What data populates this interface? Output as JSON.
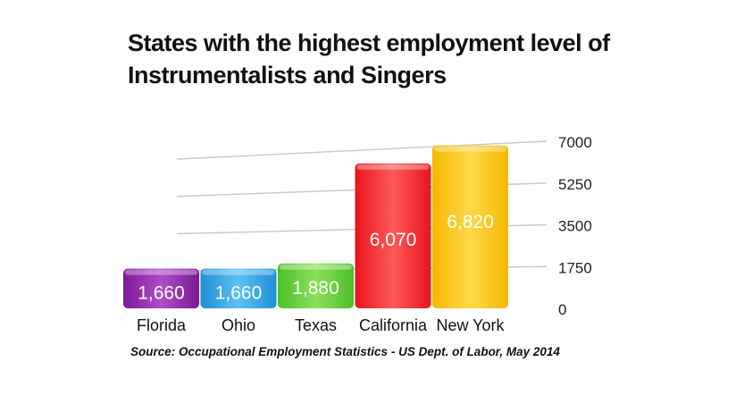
{
  "title": "States with the highest employment level of Instrumentalists and Singers",
  "source": "Source: Occupational Employment Statistics - US Dept. of Labor, May 2014",
  "chart_data": {
    "type": "bar",
    "title": "States with the highest employment level of Instrumentalists and Singers",
    "categories": [
      "Florida",
      "Ohio",
      "Texas",
      "California",
      "New York"
    ],
    "values": [
      1660,
      1660,
      1880,
      6070,
      6820
    ],
    "data_labels": [
      "1,660",
      "1,660",
      "1,880",
      "6,070",
      "6,820"
    ],
    "y_ticks": [
      "0",
      "1750",
      "3500",
      "5250",
      "7000"
    ],
    "y_tick_values": [
      0,
      1750,
      3500,
      5250,
      7000
    ],
    "ylim": [
      0,
      7000
    ],
    "yaxis_position": "right",
    "grid": true,
    "colors": [
      "#7a1a94",
      "#1e8fd6",
      "#4cbf2a",
      "#e8141c",
      "#f5b800"
    ],
    "colors_light": [
      "#b04cc8",
      "#5ec0f2",
      "#8be05a",
      "#ff5a5a",
      "#ffd84a"
    ]
  }
}
